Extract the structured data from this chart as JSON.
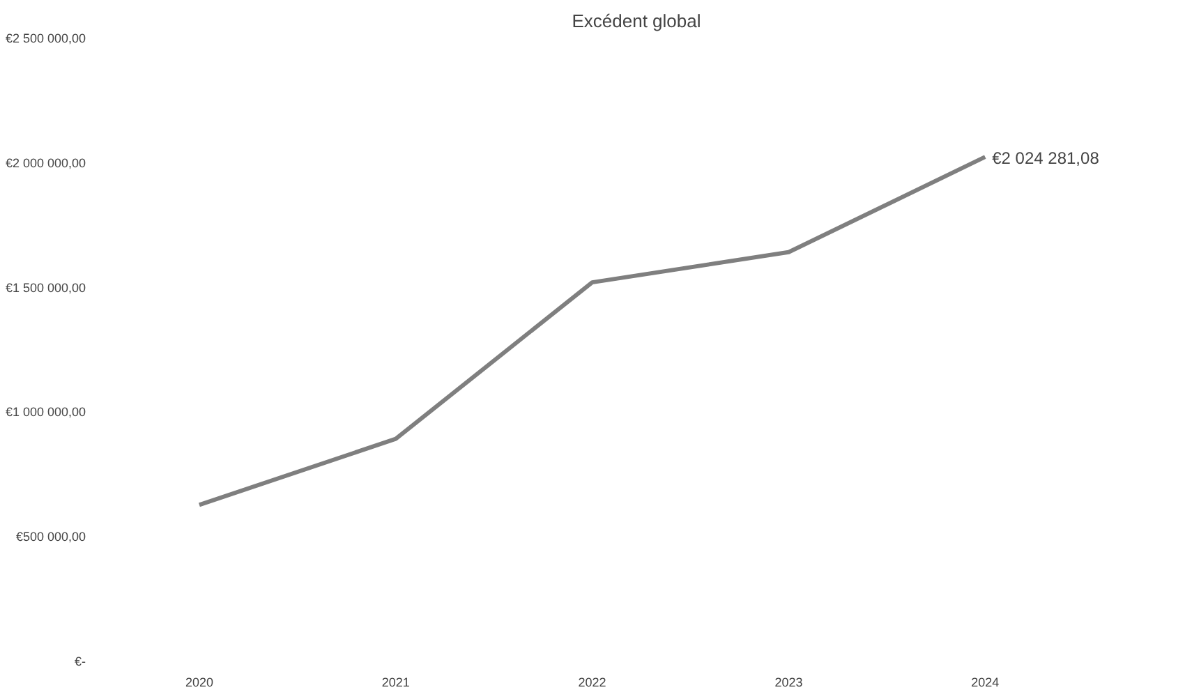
{
  "chart_data": {
    "type": "line",
    "title": "Excédent global",
    "categories": [
      "2020",
      "2021",
      "2022",
      "2023",
      "2024"
    ],
    "series": [
      {
        "color": "#7f7f7f",
        "values": [
          628000,
          893000,
          1521000,
          1642000,
          2024281.08
        ],
        "value_labels": [
          null,
          null,
          null,
          null,
          "€2 024 281,08"
        ]
      }
    ],
    "ylim": [
      0,
      2500000
    ],
    "yticks": [
      {
        "value": 0,
        "label": "€-"
      },
      {
        "value": 500000,
        "label": "€500 000,00"
      },
      {
        "value": 1000000,
        "label": "€1 000 000,00"
      },
      {
        "value": 1500000,
        "label": "€1 500 000,00"
      },
      {
        "value": 2000000,
        "label": "€2 000 000,00"
      },
      {
        "value": 2500000,
        "label": "€2 500 000,00"
      }
    ],
    "grid": false
  }
}
